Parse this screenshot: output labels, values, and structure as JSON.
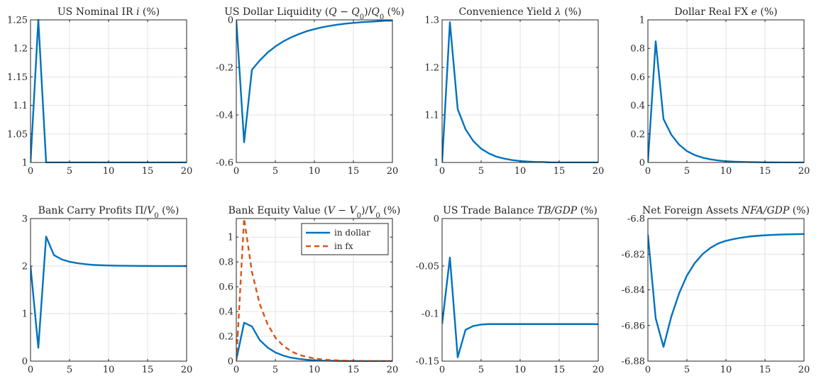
{
  "chart_data": [
    {
      "type": "line",
      "title": "US Nominal IR i (%)",
      "title_parts": [
        [
          "US Nominal IR ",
          "n"
        ],
        [
          "i",
          "i"
        ],
        [
          " (%)",
          "n"
        ]
      ],
      "xlim": [
        0,
        20
      ],
      "ylim": [
        1,
        1.25
      ],
      "xticks": [
        0,
        5,
        10,
        15,
        20
      ],
      "yticks": [
        1,
        1.05,
        1.1,
        1.15,
        1.2,
        1.25
      ],
      "ytick_labels": [
        "1",
        "1.05",
        "1.1",
        "1.15",
        "1.2",
        "1.25"
      ],
      "grid": true,
      "series": [
        {
          "color": "#0072BD",
          "dash": false,
          "x": [
            0,
            1,
            2,
            3,
            4,
            5,
            6,
            7,
            8,
            9,
            10,
            11,
            12,
            13,
            14,
            15,
            16,
            17,
            18,
            19,
            20
          ],
          "y": [
            1,
            1.25,
            1,
            1,
            1,
            1,
            1,
            1,
            1,
            1,
            1,
            1,
            1,
            1,
            1,
            1,
            1,
            1,
            1,
            1,
            1
          ]
        }
      ]
    },
    {
      "type": "line",
      "title": "US Dollar Liquidity (Q − Q0)/Q0 (%)",
      "title_parts": [
        [
          "US Dollar Liquidity (",
          "n"
        ],
        [
          "Q",
          "i"
        ],
        [
          " − ",
          "n"
        ],
        [
          "Q",
          "i"
        ],
        [
          "0",
          "sub"
        ],
        [
          ")/",
          "n"
        ],
        [
          "Q",
          "i"
        ],
        [
          "0",
          "sub"
        ],
        [
          " (%)",
          "n"
        ]
      ],
      "xlim": [
        0,
        20
      ],
      "ylim": [
        -0.6,
        0
      ],
      "xticks": [
        0,
        5,
        10,
        15,
        20
      ],
      "yticks": [
        -0.6,
        -0.4,
        -0.2,
        0
      ],
      "ytick_labels": [
        "-0.6",
        "-0.4",
        "-0.2",
        "0"
      ],
      "grid": true,
      "series": [
        {
          "color": "#0072BD",
          "dash": false,
          "x": [
            0,
            1,
            2,
            3,
            4,
            5,
            6,
            7,
            8,
            9,
            10,
            11,
            12,
            13,
            14,
            15,
            16,
            17,
            18,
            19,
            20
          ],
          "y": [
            0,
            -0.515,
            -0.21,
            -0.171,
            -0.138,
            -0.112,
            -0.091,
            -0.074,
            -0.06,
            -0.048,
            -0.039,
            -0.031,
            -0.025,
            -0.02,
            -0.016,
            -0.013,
            -0.01,
            -0.008,
            -0.006,
            -0.004,
            -0.003
          ]
        }
      ]
    },
    {
      "type": "line",
      "title": "Convenience Yield λ (%)",
      "title_parts": [
        [
          "Convenience Yield ",
          "n"
        ],
        [
          "λ",
          "i"
        ],
        [
          " (%)",
          "n"
        ]
      ],
      "xlim": [
        0,
        20
      ],
      "ylim": [
        1,
        1.3
      ],
      "xticks": [
        0,
        5,
        10,
        15,
        20
      ],
      "yticks": [
        1,
        1.1,
        1.2,
        1.3
      ],
      "ytick_labels": [
        "1",
        "1.1",
        "1.2",
        "1.3"
      ],
      "grid": true,
      "series": [
        {
          "color": "#0072BD",
          "dash": false,
          "x": [
            0,
            1,
            2,
            3,
            4,
            5,
            6,
            7,
            8,
            9,
            10,
            11,
            12,
            13,
            14,
            15,
            16,
            17,
            18,
            19,
            20
          ],
          "y": [
            1,
            1.295,
            1.112,
            1.07,
            1.045,
            1.029,
            1.019,
            1.012,
            1.008,
            1.005,
            1.003,
            1.002,
            1.001,
            1.001,
            1,
            1,
            1,
            1,
            1,
            1,
            1
          ]
        }
      ]
    },
    {
      "type": "line",
      "title": "Dollar Real FX e (%)",
      "title_parts": [
        [
          "Dollar Real FX ",
          "n"
        ],
        [
          "e",
          "i"
        ],
        [
          " (%)",
          "n"
        ]
      ],
      "xlim": [
        0,
        20
      ],
      "ylim": [
        0,
        1
      ],
      "xticks": [
        0,
        5,
        10,
        15,
        20
      ],
      "yticks": [
        0,
        0.2,
        0.4,
        0.6,
        0.8,
        1
      ],
      "ytick_labels": [
        "0",
        "0.2",
        "0.4",
        "0.6",
        "0.8",
        "1"
      ],
      "grid": true,
      "series": [
        {
          "color": "#0072BD",
          "dash": false,
          "x": [
            0,
            1,
            2,
            3,
            4,
            5,
            6,
            7,
            8,
            9,
            10,
            11,
            12,
            13,
            14,
            15,
            16,
            17,
            18,
            19,
            20
          ],
          "y": [
            0,
            0.85,
            0.305,
            0.195,
            0.125,
            0.08,
            0.052,
            0.034,
            0.022,
            0.014,
            0.009,
            0.006,
            0.004,
            0.003,
            0.002,
            0.001,
            0.001,
            0,
            0,
            0,
            0
          ]
        }
      ]
    },
    {
      "type": "line",
      "title": "Bank Carry Profits Π/V0 (%)",
      "title_parts": [
        [
          "Bank Carry Profits Π/",
          "n"
        ],
        [
          "V",
          "i"
        ],
        [
          "0",
          "sub"
        ],
        [
          " (%)",
          "n"
        ]
      ],
      "xlim": [
        0,
        20
      ],
      "ylim": [
        0,
        3
      ],
      "xticks": [
        0,
        5,
        10,
        15,
        20
      ],
      "yticks": [
        0,
        1,
        2,
        3
      ],
      "ytick_labels": [
        "0",
        "1",
        "2",
        "3"
      ],
      "grid": true,
      "series": [
        {
          "color": "#0072BD",
          "dash": false,
          "x": [
            0,
            1,
            2,
            3,
            4,
            5,
            6,
            7,
            8,
            9,
            10,
            11,
            12,
            13,
            14,
            15,
            16,
            17,
            18,
            19,
            20
          ],
          "y": [
            2,
            0.28,
            2.62,
            2.23,
            2.14,
            2.09,
            2.06,
            2.04,
            2.025,
            2.017,
            2.012,
            2.008,
            2.006,
            2.004,
            2.003,
            2.002,
            2.001,
            2.001,
            2,
            2,
            2
          ]
        }
      ]
    },
    {
      "type": "line",
      "title": "Bank Equity Value (V − V0)/V0 (%)",
      "title_parts": [
        [
          "Bank Equity Value (",
          "n"
        ],
        [
          "V",
          "i"
        ],
        [
          " − ",
          "n"
        ],
        [
          "V",
          "i"
        ],
        [
          "0",
          "sub"
        ],
        [
          ")/",
          "n"
        ],
        [
          "V",
          "i"
        ],
        [
          "0",
          "sub"
        ],
        [
          " (%)",
          "n"
        ]
      ],
      "xlim": [
        0,
        20
      ],
      "ylim": [
        0,
        1.15
      ],
      "xticks": [
        0,
        5,
        10,
        15,
        20
      ],
      "yticks": [
        0,
        0.2,
        0.4,
        0.6,
        0.8,
        1
      ],
      "ytick_labels": [
        "0",
        "0.2",
        "0.4",
        "0.6",
        "0.8",
        "1"
      ],
      "grid": true,
      "legend": {
        "placement": "top-right"
      },
      "series": [
        {
          "name": "in dollar",
          "color": "#0072BD",
          "dash": false,
          "x": [
            0,
            1,
            2,
            3,
            4,
            5,
            6,
            7,
            8,
            9,
            10,
            11,
            12,
            13,
            14,
            15,
            16,
            17,
            18,
            19,
            20
          ],
          "y": [
            0.01,
            0.31,
            0.28,
            0.17,
            0.11,
            0.07,
            0.045,
            0.028,
            0.018,
            0.011,
            0.007,
            0.004,
            0.003,
            0.002,
            0.001,
            0.001,
            0,
            0,
            0,
            0,
            0
          ]
        },
        {
          "name": "in fx",
          "color": "#D95319",
          "dash": true,
          "x": [
            0,
            1,
            2,
            3,
            4,
            5,
            6,
            7,
            8,
            9,
            10,
            11,
            12,
            13,
            14,
            15,
            16,
            17,
            18,
            19,
            20
          ],
          "y": [
            0,
            1.15,
            0.72,
            0.46,
            0.3,
            0.19,
            0.125,
            0.08,
            0.052,
            0.034,
            0.022,
            0.014,
            0.009,
            0.006,
            0.004,
            0.003,
            0.002,
            0.001,
            0.001,
            0,
            0
          ]
        }
      ]
    },
    {
      "type": "line",
      "title": "US Trade Balance TB/GDP (%)",
      "title_parts": [
        [
          "US Trade Balance ",
          "n"
        ],
        [
          "TB/GDP",
          "i"
        ],
        [
          " (%)",
          "n"
        ]
      ],
      "xlim": [
        0,
        20
      ],
      "ylim": [
        -0.15,
        0
      ],
      "xticks": [
        0,
        5,
        10,
        15,
        20
      ],
      "yticks": [
        -0.15,
        -0.1,
        -0.05,
        0
      ],
      "ytick_labels": [
        "-0.15",
        "-0.1",
        "-0.05",
        "0"
      ],
      "grid": true,
      "series": [
        {
          "color": "#0072BD",
          "dash": false,
          "x": [
            0,
            1,
            2,
            3,
            4,
            5,
            6,
            7,
            8,
            9,
            10,
            11,
            12,
            13,
            14,
            15,
            16,
            17,
            18,
            19,
            20
          ],
          "y": [
            -0.111,
            -0.041,
            -0.146,
            -0.117,
            -0.113,
            -0.1115,
            -0.111,
            -0.111,
            -0.111,
            -0.111,
            -0.111,
            -0.111,
            -0.111,
            -0.111,
            -0.111,
            -0.111,
            -0.111,
            -0.111,
            -0.111,
            -0.111,
            -0.1112
          ]
        }
      ]
    },
    {
      "type": "line",
      "title": "Net Foreign Assets NFA/GDP (%)",
      "title_parts": [
        [
          "Net Foreign Assets ",
          "n"
        ],
        [
          "NFA/GDP",
          "i"
        ],
        [
          " (%)",
          "n"
        ]
      ],
      "xlim": [
        0,
        20
      ],
      "ylim": [
        -6.88,
        -6.8
      ],
      "xticks": [
        0,
        5,
        10,
        15,
        20
      ],
      "yticks": [
        -6.88,
        -6.86,
        -6.84,
        -6.82,
        -6.8
      ],
      "ytick_labels": [
        "-6.88",
        "-6.86",
        "-6.84",
        "-6.82",
        "-6.8"
      ],
      "grid": true,
      "series": [
        {
          "color": "#0072BD",
          "dash": false,
          "x": [
            0,
            1,
            2,
            3,
            4,
            5,
            6,
            7,
            8,
            9,
            10,
            11,
            12,
            13,
            14,
            15,
            16,
            17,
            18,
            19,
            20
          ],
          "y": [
            -6.809,
            -6.856,
            -6.872,
            -6.855,
            -6.842,
            -6.832,
            -6.825,
            -6.82,
            -6.8165,
            -6.814,
            -6.8125,
            -6.8115,
            -6.8107,
            -6.8101,
            -6.8097,
            -6.8094,
            -6.8092,
            -6.809,
            -6.8089,
            -6.8088,
            -6.8087
          ]
        }
      ]
    }
  ]
}
